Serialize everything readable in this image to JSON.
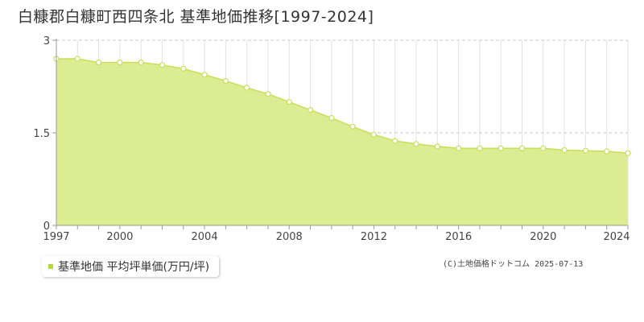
{
  "title": "白糠郡白糠町西四条北 基準地価推移[1997-2024]",
  "legend_label": "基準地価 平均坪単価(万円/坪)",
  "copyright": "(C)土地価格ドットコム 2025-07-13",
  "colors": {
    "fill": "#dcec92",
    "line": "#c6df58",
    "marker": "#c6df58",
    "swatch": "#b5d93c"
  },
  "chart_data": {
    "type": "area",
    "x": [
      1997,
      1998,
      1999,
      2000,
      2001,
      2002,
      2003,
      2004,
      2005,
      2006,
      2007,
      2008,
      2009,
      2010,
      2011,
      2012,
      2013,
      2014,
      2015,
      2016,
      2017,
      2018,
      2019,
      2020,
      2021,
      2022,
      2023,
      2024
    ],
    "series": [
      {
        "name": "基準地価 平均坪単価(万円/坪)",
        "values": [
          2.7,
          2.7,
          2.64,
          2.64,
          2.64,
          2.6,
          2.54,
          2.44,
          2.34,
          2.23,
          2.13,
          2.0,
          1.87,
          1.74,
          1.6,
          1.47,
          1.37,
          1.32,
          1.28,
          1.25,
          1.25,
          1.25,
          1.25,
          1.25,
          1.22,
          1.21,
          1.2,
          1.17
        ]
      }
    ],
    "xticks": [
      "1997",
      "2000",
      "2004",
      "2008",
      "2012",
      "2016",
      "2020",
      "2024"
    ],
    "yticks": [
      "0",
      "1.5",
      "3"
    ],
    "xlim": [
      1997,
      2024
    ],
    "ylim": [
      0,
      3
    ],
    "grid": true
  }
}
